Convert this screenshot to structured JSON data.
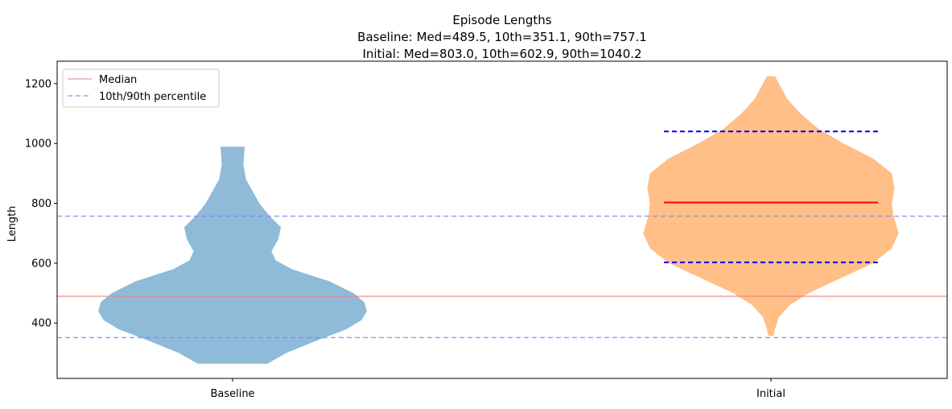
{
  "chart_data": {
    "type": "violin",
    "title": "Episode Lengths",
    "subtitle_lines": [
      "Baseline: Med=489.5, 10th=351.1, 90th=757.1",
      "Initial: Med=803.0, 10th=602.9, 90th=1040.2"
    ],
    "xlabel": "",
    "ylabel": "Length",
    "categories": [
      "Baseline",
      "Initial"
    ],
    "ylim": [
      215,
      1275
    ],
    "yticks": [
      400,
      600,
      800,
      1000,
      1200
    ],
    "grid": false,
    "legend_position": "top-left",
    "legend": [
      {
        "label": "Median",
        "style": "solid",
        "color": "#f4a6a6"
      },
      {
        "label": "10th/90th percentile",
        "style": "dashed",
        "color": "#a6a6f4"
      }
    ],
    "reference_lines": {
      "median": 489.5,
      "p10": 351.1,
      "p90": 757.1,
      "colors": {
        "median": "#f08080",
        "percentile": "#8080f0"
      }
    },
    "series": [
      {
        "name": "Baseline",
        "color": "#1f77b4",
        "median": 489.5,
        "p10": 351.1,
        "p90": 757.1,
        "show_inner_lines": false,
        "density": [
          [
            264,
            0.26
          ],
          [
            300,
            0.4
          ],
          [
            340,
            0.62
          ],
          [
            380,
            0.85
          ],
          [
            410,
            0.96
          ],
          [
            440,
            1.0
          ],
          [
            470,
            0.98
          ],
          [
            500,
            0.9
          ],
          [
            540,
            0.72
          ],
          [
            580,
            0.44
          ],
          [
            610,
            0.32
          ],
          [
            640,
            0.29
          ],
          [
            680,
            0.34
          ],
          [
            720,
            0.36
          ],
          [
            760,
            0.27
          ],
          [
            800,
            0.2
          ],
          [
            840,
            0.15
          ],
          [
            880,
            0.1
          ],
          [
            930,
            0.08
          ],
          [
            989,
            0.09
          ]
        ]
      },
      {
        "name": "Initial",
        "color": "#ff7f0e",
        "median": 803.0,
        "p10": 602.9,
        "p90": 1040.2,
        "show_inner_lines": true,
        "density": [
          [
            357,
            0.02
          ],
          [
            380,
            0.03
          ],
          [
            420,
            0.06
          ],
          [
            460,
            0.14
          ],
          [
            500,
            0.28
          ],
          [
            550,
            0.52
          ],
          [
            600,
            0.76
          ],
          [
            650,
            0.9
          ],
          [
            700,
            0.95
          ],
          [
            760,
            0.91
          ],
          [
            800,
            0.9
          ],
          [
            850,
            0.92
          ],
          [
            900,
            0.9
          ],
          [
            950,
            0.76
          ],
          [
            1000,
            0.54
          ],
          [
            1050,
            0.35
          ],
          [
            1100,
            0.22
          ],
          [
            1150,
            0.12
          ],
          [
            1200,
            0.06
          ],
          [
            1225,
            0.03
          ]
        ]
      }
    ]
  }
}
